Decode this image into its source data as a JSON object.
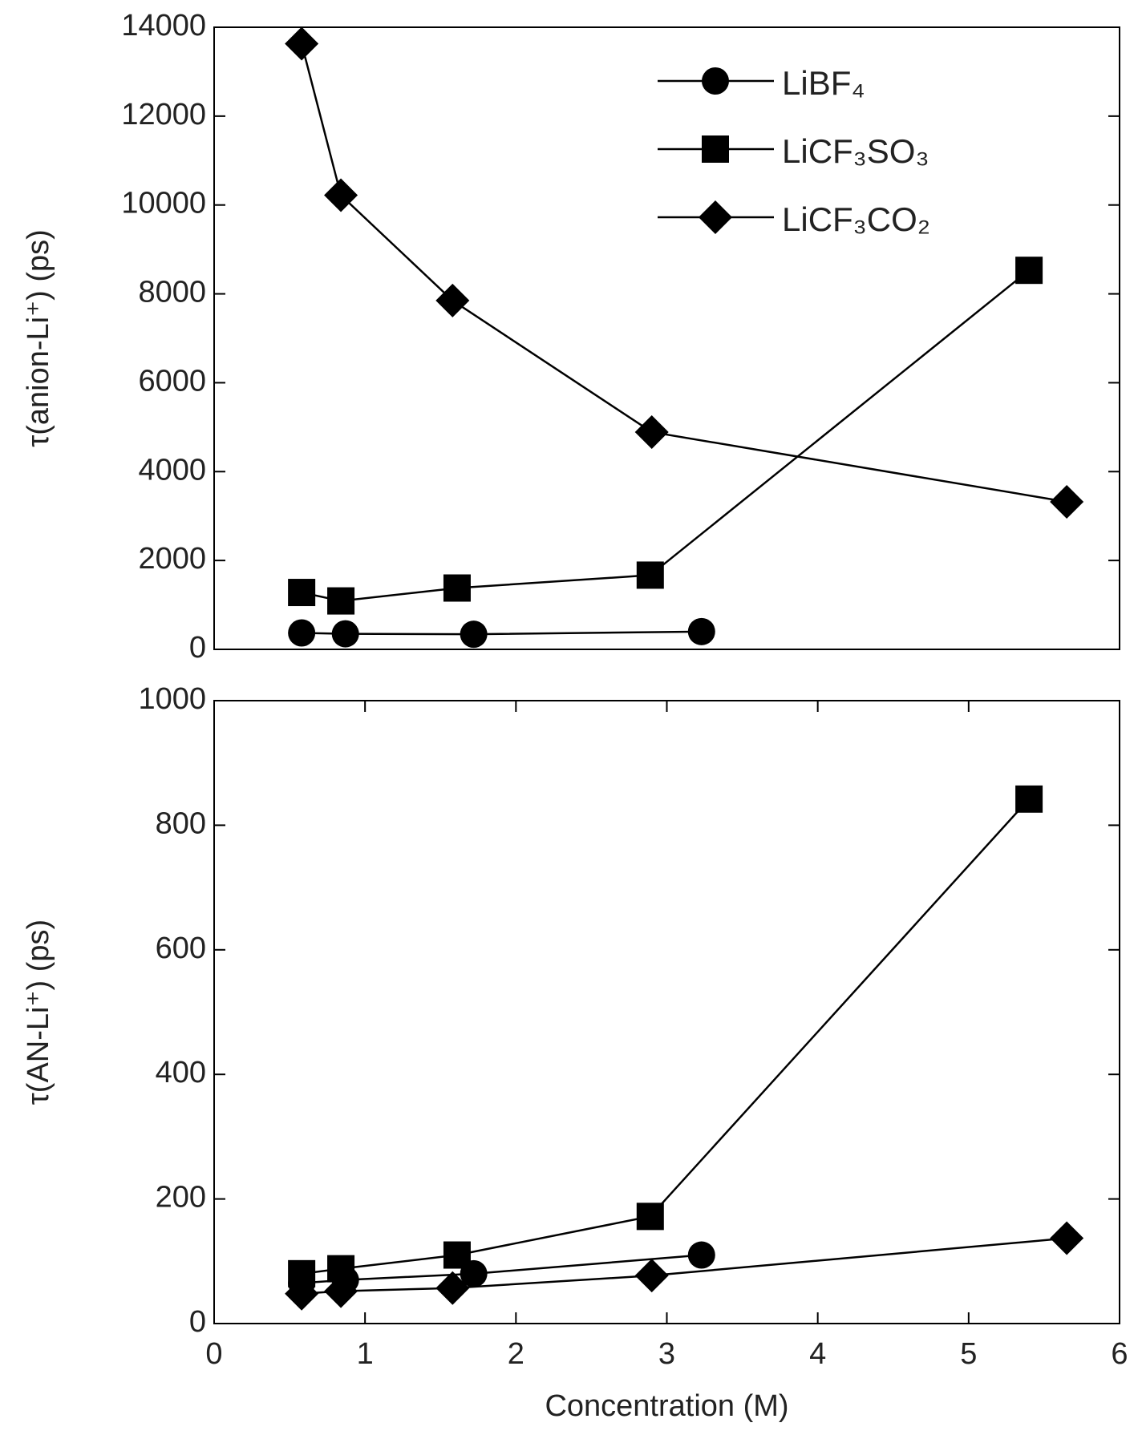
{
  "chart_data": [
    {
      "type": "line",
      "ylabel": "τ(anion-Li⁺) (ps)",
      "xlim": [
        0,
        6
      ],
      "ylim": [
        0,
        14000
      ],
      "yticks": [
        0,
        2000,
        4000,
        6000,
        8000,
        10000,
        12000,
        14000
      ],
      "legend": "upper right",
      "series": [
        {
          "name": "LiBF₄",
          "color": "#000000",
          "marker": "circle",
          "x": [
            0.58,
            0.87,
            1.72,
            3.23
          ],
          "values": [
            370,
            350,
            340,
            400
          ]
        },
        {
          "name": "LiCF₃SO₃",
          "color": "#000000",
          "marker": "square",
          "x": [
            0.58,
            0.84,
            1.61,
            2.89,
            5.4
          ],
          "values": [
            1280,
            1090,
            1380,
            1670,
            8530
          ]
        },
        {
          "name": "LiCF₃CO₂",
          "color": "#000000",
          "marker": "diamond",
          "x": [
            0.58,
            0.84,
            1.58,
            2.9,
            5.65
          ],
          "values": [
            13630,
            10220,
            7850,
            4890,
            3320
          ]
        }
      ]
    },
    {
      "type": "line",
      "ylabel": "τ(AN-Li⁺) (ps)",
      "xlabel": "Concentration (M)",
      "xlim": [
        0,
        6
      ],
      "xticks": [
        0,
        1,
        2,
        3,
        4,
        5,
        6
      ],
      "ylim": [
        0,
        1000
      ],
      "yticks": [
        0,
        200,
        400,
        600,
        800,
        1000
      ],
      "series": [
        {
          "color": "#000000",
          "marker": "circle",
          "x": [
            0.58,
            0.87,
            1.72,
            3.23
          ],
          "values": [
            65,
            70,
            80,
            110
          ]
        },
        {
          "color": "#000000",
          "marker": "square",
          "x": [
            0.58,
            0.84,
            1.61,
            2.89,
            5.4
          ],
          "values": [
            80,
            88,
            110,
            172,
            842
          ]
        },
        {
          "color": "#000000",
          "marker": "diamond",
          "x": [
            0.58,
            0.84,
            1.58,
            2.9,
            5.65
          ],
          "values": [
            48,
            52,
            57,
            77,
            137
          ]
        }
      ]
    }
  ]
}
